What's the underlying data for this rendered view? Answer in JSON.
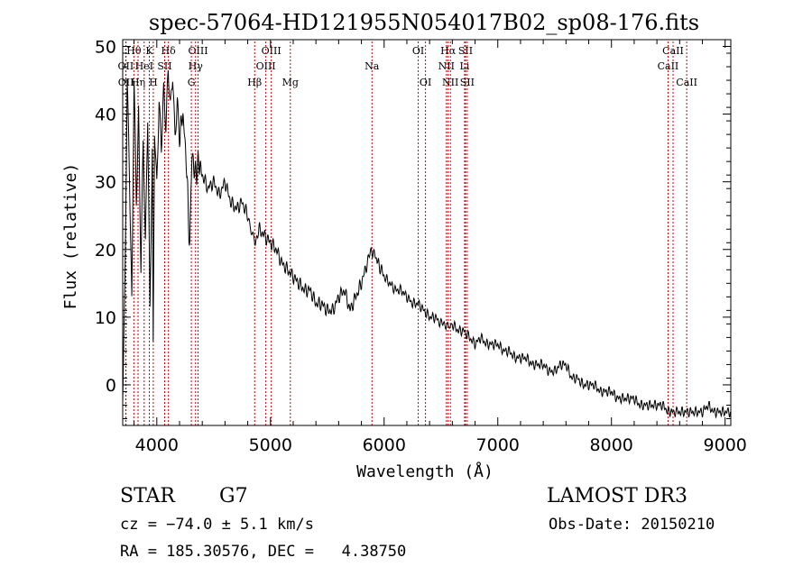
{
  "chart_data": {
    "type": "line",
    "title": "spec-57064-HD121955N054017B02_sp08-176.fits",
    "xlabel": "Wavelength (Å)",
    "ylabel": "Flux (relative)",
    "xlim": [
      3700,
      9050
    ],
    "ylim": [
      -6,
      51
    ],
    "x_ticks": [
      "4000",
      "5000",
      "6000",
      "7000",
      "8000",
      "9000"
    ],
    "y_ticks": [
      "0",
      "10",
      "20",
      "30",
      "40",
      "50"
    ],
    "series": [
      {
        "name": "spectrum",
        "x": [
          3700,
          3720,
          3740,
          3760,
          3780,
          3800,
          3820,
          3840,
          3860,
          3880,
          3900,
          3920,
          3940,
          3960,
          3968,
          3980,
          4000,
          4020,
          4040,
          4060,
          4080,
          4100,
          4120,
          4140,
          4160,
          4180,
          4200,
          4230,
          4260,
          4290,
          4310,
          4340,
          4370,
          4400,
          4450,
          4500,
          4550,
          4600,
          4650,
          4700,
          4750,
          4800,
          4861,
          4900,
          4950,
          5000,
          5050,
          5100,
          5150,
          5200,
          5250,
          5300,
          5350,
          5400,
          5450,
          5500,
          5550,
          5600,
          5650,
          5700,
          5750,
          5800,
          5850,
          5893,
          5920,
          5950,
          6000,
          6050,
          6100,
          6150,
          6200,
          6250,
          6300,
          6350,
          6400,
          6450,
          6500,
          6563,
          6600,
          6650,
          6700,
          6750,
          6800,
          6850,
          6900,
          6950,
          7000,
          7050,
          7100,
          7150,
          7200,
          7250,
          7300,
          7350,
          7400,
          7450,
          7500,
          7550,
          7600,
          7650,
          7700,
          7750,
          7800,
          7850,
          7900,
          7950,
          8000,
          8050,
          8100,
          8150,
          8200,
          8250,
          8300,
          8350,
          8400,
          8450,
          8500,
          8542,
          8600,
          8650,
          8700,
          8750,
          8800,
          8850,
          8900,
          8950,
          9000,
          9050
        ],
        "values": [
          -2,
          14,
          44,
          30,
          12,
          46,
          28,
          41,
          18,
          36,
          20,
          39,
          10,
          34,
          5,
          38,
          30,
          43,
          36,
          44,
          38,
          46,
          40,
          45,
          36,
          42,
          37,
          40,
          33,
          20,
          34,
          31,
          33,
          31,
          29,
          30,
          28,
          30,
          27,
          26,
          27,
          25,
          21,
          23,
          22,
          21,
          20,
          18,
          17,
          16,
          15,
          14,
          14,
          12,
          12,
          11,
          11,
          13,
          14,
          11,
          13,
          15,
          18,
          20,
          19,
          18,
          16,
          15,
          14,
          14,
          13,
          12,
          12,
          11,
          10,
          10,
          9,
          9,
          9,
          8,
          8,
          7,
          6,
          7,
          6,
          6,
          6,
          5,
          5,
          4,
          4,
          4,
          3,
          3,
          3,
          2,
          2,
          3,
          3,
          1,
          1,
          0,
          0,
          0,
          -1,
          -1,
          -1,
          -2,
          -2,
          -2,
          -2,
          -3,
          -3,
          -3,
          -3,
          -3,
          -4,
          -4,
          -4,
          -4,
          -4,
          -4,
          -4,
          -3,
          -4,
          -4,
          -4,
          -4
        ]
      }
    ],
    "lines": [
      {
        "name": "OII",
        "wavelength": 3727,
        "row": 2
      },
      {
        "name": "OII",
        "wavelength": 3729,
        "row": 3
      },
      {
        "name": "Hθ",
        "wavelength": 3798,
        "row": 1
      },
      {
        "name": "Hη",
        "wavelength": 3835,
        "row": 3
      },
      {
        "name": "HeI",
        "wavelength": 3889,
        "row": 2
      },
      {
        "name": "K",
        "wavelength": 3934,
        "row": 1
      },
      {
        "name": "SII",
        "wavelength": 4069,
        "row": 2
      },
      {
        "name": "H",
        "wavelength": 3969,
        "row": 3
      },
      {
        "name": "Hδ",
        "wavelength": 4102,
        "row": 1
      },
      {
        "name": "OIII",
        "wavelength": 4363,
        "row": 1
      },
      {
        "name": "Hγ",
        "wavelength": 4341,
        "row": 2
      },
      {
        "name": "G",
        "wavelength": 4304,
        "row": 3
      },
      {
        "name": "Hβ",
        "wavelength": 4861,
        "row": 3
      },
      {
        "name": "OIII",
        "wavelength": 5007,
        "row": 1
      },
      {
        "name": "OIII",
        "wavelength": 4959,
        "row": 2
      },
      {
        "name": "Mg",
        "wavelength": 5175,
        "row": 3
      },
      {
        "name": "Na",
        "wavelength": 5893,
        "row": 2
      },
      {
        "name": "OI",
        "wavelength": 6300,
        "row": 1
      },
      {
        "name": "OI",
        "wavelength": 6364,
        "row": 3
      },
      {
        "name": "Hα",
        "wavelength": 6563,
        "row": 1
      },
      {
        "name": "SII",
        "wavelength": 6716,
        "row": 1
      },
      {
        "name": "NII",
        "wavelength": 6548,
        "row": 2
      },
      {
        "name": "Li",
        "wavelength": 6708,
        "row": 2
      },
      {
        "name": "NII",
        "wavelength": 6583,
        "row": 3
      },
      {
        "name": "SII",
        "wavelength": 6731,
        "row": 3
      },
      {
        "name": "CaII",
        "wavelength": 8542,
        "row": 1
      },
      {
        "name": "CaII",
        "wavelength": 8498,
        "row": 2
      },
      {
        "name": "CaII",
        "wavelength": 8662,
        "row": 3
      }
    ],
    "colors": {
      "line": "#000000",
      "marker": "#cc0000",
      "axes": "#000000"
    }
  },
  "info": {
    "class": "STAR",
    "subclass": "G7",
    "survey": "LAMOST DR3",
    "redshift": "cz = −74.0 ± 5.1 km/s",
    "obs_date": "Obs-Date: 20150210",
    "coords": "RA = 185.30576, DEC =   4.38750"
  }
}
